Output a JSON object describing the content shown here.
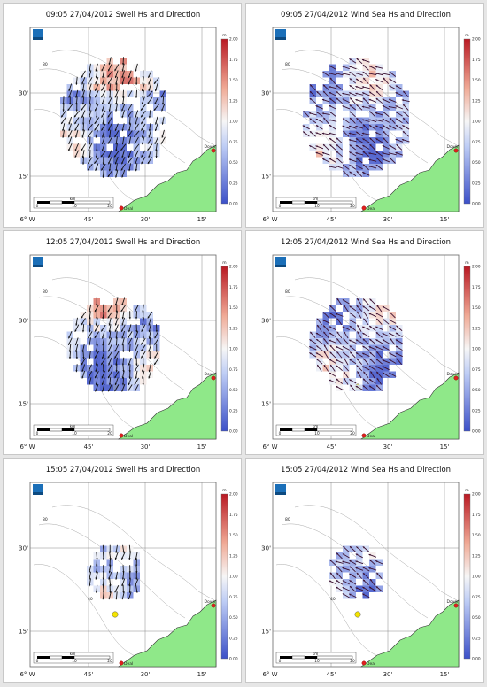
{
  "chart_data": [
    {
      "type": "heatmap",
      "title": "09:05 27/04/2012 Swell Hs and Direction",
      "variable": "swell",
      "time": "09:05",
      "extent": 1.0,
      "seed": 11,
      "direction_deg": 110,
      "y_ticks": [
        "30'",
        "15'"
      ],
      "x_ticks": [
        "6° W",
        "45'",
        "30'",
        "15'"
      ],
      "colorbar": {
        "unit": "m",
        "min": 0,
        "max": 2,
        "ticks": [
          "2.00",
          "1.75",
          "1.50",
          "1.25",
          "1.00",
          "0.75",
          "0.50",
          "0.25",
          "0.00"
        ]
      },
      "scale_unit": "km",
      "scale_ticks": [
        "0",
        "10",
        "20"
      ],
      "places": [
        "Deal",
        "Dover"
      ],
      "contour_labels": [
        "80",
        "40"
      ]
    },
    {
      "type": "heatmap",
      "title": "09:05 27/04/2012 Wind Sea Hs and Direction",
      "variable": "wind_sea",
      "time": "09:05",
      "extent": 1.0,
      "seed": 23,
      "direction_deg": 210,
      "y_ticks": [
        "30'",
        "15'"
      ],
      "x_ticks": [
        "6° W",
        "45'",
        "30'",
        "15'"
      ],
      "colorbar": {
        "unit": "m",
        "min": 0,
        "max": 2,
        "ticks": [
          "2.00",
          "1.75",
          "1.50",
          "1.25",
          "1.00",
          "0.75",
          "0.50",
          "0.25",
          "0.00"
        ]
      },
      "scale_unit": "km",
      "scale_ticks": [
        "0",
        "10",
        "20"
      ],
      "places": [
        "Deal",
        "Dover"
      ],
      "contour_labels": [
        "80",
        "40"
      ]
    },
    {
      "type": "heatmap",
      "title": "12:05 27/04/2012 Swell Hs and Direction",
      "variable": "swell",
      "time": "12:05",
      "extent": 0.85,
      "seed": 37,
      "direction_deg": 105,
      "y_ticks": [
        "30'",
        "15'"
      ],
      "x_ticks": [
        "6° W",
        "45'",
        "30'",
        "15'"
      ],
      "colorbar": {
        "unit": "m",
        "min": 0,
        "max": 2,
        "ticks": [
          "2.00",
          "1.75",
          "1.50",
          "1.25",
          "1.00",
          "0.75",
          "0.50",
          "0.25",
          "0.00"
        ]
      },
      "scale_unit": "km",
      "scale_ticks": [
        "0",
        "10",
        "20"
      ],
      "places": [
        "Deal",
        "Dover"
      ],
      "contour_labels": [
        "80",
        "40"
      ]
    },
    {
      "type": "heatmap",
      "title": "12:05 27/04/2012 Wind Sea Hs and Direction",
      "variable": "wind_sea",
      "time": "12:05",
      "extent": 0.85,
      "seed": 41,
      "direction_deg": 220,
      "y_ticks": [
        "30'",
        "15'"
      ],
      "x_ticks": [
        "6° W",
        "45'",
        "30'",
        "15'"
      ],
      "colorbar": {
        "unit": "m",
        "min": 0,
        "max": 2,
        "ticks": [
          "2.00",
          "1.75",
          "1.50",
          "1.25",
          "1.00",
          "0.75",
          "0.50",
          "0.25",
          "0.00"
        ]
      },
      "scale_unit": "km",
      "scale_ticks": [
        "0",
        "10",
        "20"
      ],
      "places": [
        "Deal",
        "Dover"
      ],
      "contour_labels": [
        "80",
        "40"
      ]
    },
    {
      "type": "heatmap",
      "title": "15:05 27/04/2012 Swell Hs and Direction",
      "variable": "swell",
      "time": "15:05",
      "extent": 0.5,
      "seed": 53,
      "direction_deg": 100,
      "y_ticks": [
        "30'",
        "15'"
      ],
      "x_ticks": [
        "6° W",
        "45'",
        "30'",
        "15'"
      ],
      "colorbar": {
        "unit": "m",
        "min": 0,
        "max": 2,
        "ticks": [
          "2.00",
          "1.75",
          "1.50",
          "1.25",
          "1.00",
          "0.75",
          "0.50",
          "0.25",
          "0.00"
        ]
      },
      "scale_unit": "km",
      "scale_ticks": [
        "0",
        "10",
        "20"
      ],
      "places": [
        "Deal",
        "Dover"
      ],
      "contour_labels": [
        "80",
        "40"
      ]
    },
    {
      "type": "heatmap",
      "title": "15:05 27/04/2012 Wind Sea Hs and Direction",
      "variable": "wind_sea",
      "time": "15:05",
      "extent": 0.5,
      "seed": 67,
      "direction_deg": 215,
      "y_ticks": [
        "30'",
        "15'"
      ],
      "x_ticks": [
        "6° W",
        "45'",
        "30'",
        "15'"
      ],
      "colorbar": {
        "unit": "m",
        "min": 0,
        "max": 2,
        "ticks": [
          "2.00",
          "1.75",
          "1.50",
          "1.25",
          "1.00",
          "0.75",
          "0.50",
          "0.25",
          "0.00"
        ]
      },
      "scale_unit": "km",
      "scale_ticks": [
        "0",
        "10",
        "20"
      ],
      "places": [
        "Deal",
        "Dover"
      ],
      "contour_labels": [
        "80",
        "40"
      ]
    }
  ]
}
